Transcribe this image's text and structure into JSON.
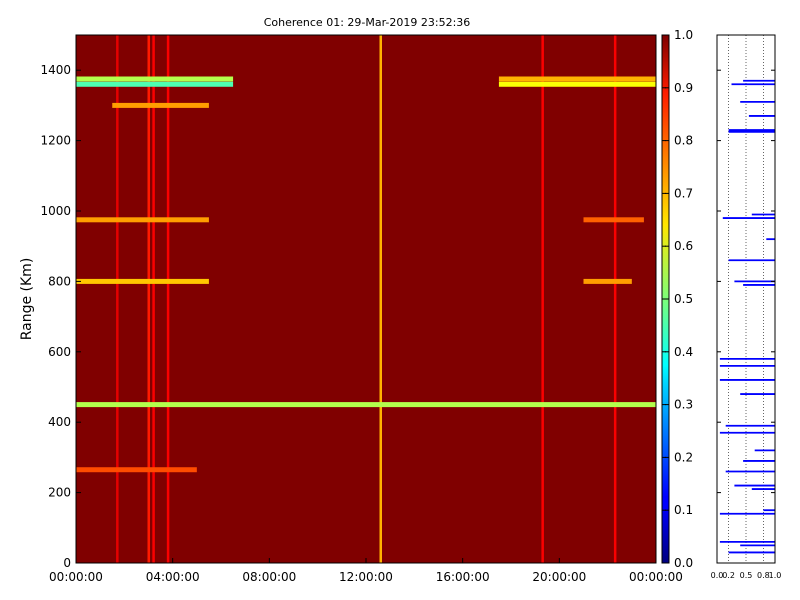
{
  "chart_data": [
    {
      "type": "heatmap",
      "title": "Coherence 01: 29-Mar-2019 23:52:36",
      "xlabel": "",
      "ylabel": "Range (Km)",
      "x_ticks": [
        "00:00:00",
        "04:00:00",
        "08:00:00",
        "12:00:00",
        "16:00:00",
        "20:00:00",
        "00:00:00"
      ],
      "y_ticks": [
        0,
        200,
        400,
        600,
        800,
        1000,
        1200,
        1400
      ],
      "xlim_hours": [
        0,
        24
      ],
      "ylim": [
        0,
        1500
      ],
      "background_value": 1.0,
      "range_bands": [
        {
          "range": 1360,
          "t_start": 0.0,
          "t_end": 6.5,
          "value": 0.45
        },
        {
          "range": 1360,
          "t_start": 17.5,
          "t_end": 24.0,
          "value": 0.62
        },
        {
          "range": 1375,
          "t_start": 0.0,
          "t_end": 6.5,
          "value": 0.55
        },
        {
          "range": 1375,
          "t_start": 17.5,
          "t_end": 24.0,
          "value": 0.7
        },
        {
          "range": 1300,
          "t_start": 1.5,
          "t_end": 5.5,
          "value": 0.72
        },
        {
          "range": 975,
          "t_start": 0.0,
          "t_end": 5.5,
          "value": 0.72
        },
        {
          "range": 975,
          "t_start": 21.0,
          "t_end": 23.5,
          "value": 0.78
        },
        {
          "range": 800,
          "t_start": 0.0,
          "t_end": 5.5,
          "value": 0.68
        },
        {
          "range": 800,
          "t_start": 21.0,
          "t_end": 23.0,
          "value": 0.72
        },
        {
          "range": 450,
          "t_start": 0.0,
          "t_end": 24.0,
          "value": 0.55
        },
        {
          "range": 265,
          "t_start": 0.0,
          "t_end": 5.0,
          "value": 0.8
        }
      ],
      "time_columns": [
        {
          "t": 1.7,
          "value": 0.9
        },
        {
          "t": 3.0,
          "value": 0.85
        },
        {
          "t": 3.2,
          "value": 0.88
        },
        {
          "t": 3.8,
          "value": 0.88
        },
        {
          "t": 12.6,
          "value": 0.7
        },
        {
          "t": 19.3,
          "value": 0.88
        },
        {
          "t": 22.3,
          "value": 0.88
        }
      ],
      "colorbar": {
        "min": 0.0,
        "max": 1.0,
        "ticks": [
          "0.0",
          "0.1",
          "0.2",
          "0.3",
          "0.4",
          "0.5",
          "0.6",
          "0.7",
          "0.8",
          "0.9",
          "1.0"
        ]
      },
      "grid": false,
      "colormap": "jet"
    },
    {
      "type": "bar",
      "orientation": "horizontal",
      "xlabel": "",
      "ylabel": "",
      "xlim": [
        0.0,
        1.0
      ],
      "ylim": [
        0,
        1500
      ],
      "x_ticks": [
        "0.0",
        "0.2",
        "0.5",
        "0.8",
        "1.0"
      ],
      "grid": "vertical-dotted",
      "color": "#0000ff",
      "y": [
        1370,
        1360,
        1310,
        1270,
        1230,
        1225,
        990,
        980,
        920,
        860,
        800,
        790,
        580,
        560,
        520,
        480,
        390,
        370,
        320,
        290,
        260,
        220,
        210,
        150,
        140,
        60,
        50,
        30
      ],
      "values": [
        0.55,
        0.75,
        0.6,
        0.45,
        0.8,
        0.8,
        0.4,
        0.9,
        0.15,
        0.8,
        0.7,
        0.55,
        0.95,
        0.95,
        0.95,
        0.6,
        0.85,
        0.95,
        0.35,
        0.55,
        0.85,
        0.7,
        0.4,
        0.2,
        0.95,
        0.95,
        0.6,
        0.8
      ]
    }
  ]
}
